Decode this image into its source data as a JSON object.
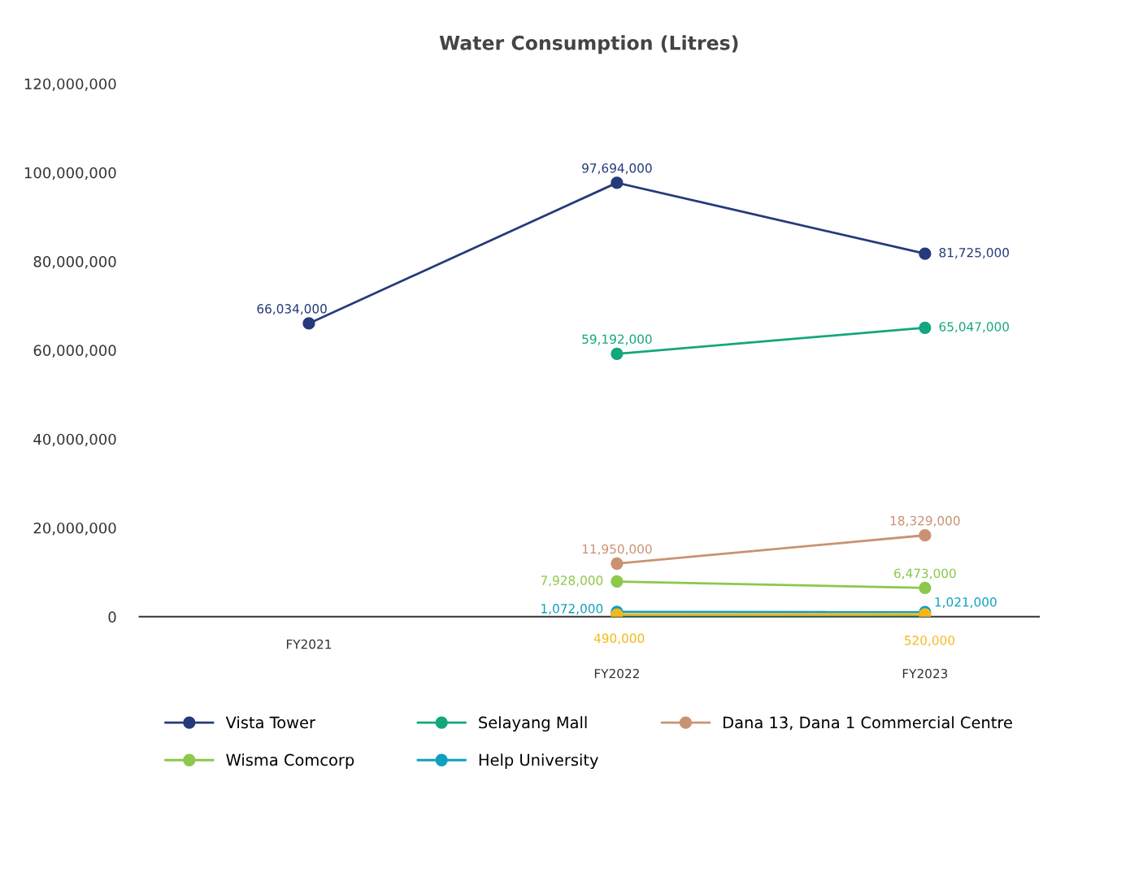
{
  "chart_data": {
    "type": "line",
    "title": "Water Consumption (Litres)",
    "categories": [
      "FY2021",
      "FY2022",
      "FY2023"
    ],
    "series": [
      {
        "name": "Vista Tower",
        "color": "#253a7a",
        "values": [
          66034000,
          97694000,
          81725000
        ],
        "value_labels": [
          "66,034,000",
          "97,694,000",
          "81,725,000"
        ]
      },
      {
        "name": "Selayang Mall",
        "color": "#12a77e",
        "values": [
          null,
          59192000,
          65047000
        ],
        "value_labels": [
          null,
          "59,192,000",
          "65,047,000"
        ]
      },
      {
        "name": "Dana 13, Dana 1 Commercial Centre",
        "color": "#c99273",
        "values": [
          null,
          11950000,
          18329000
        ],
        "value_labels": [
          null,
          "11,950,000",
          "18,329,000"
        ]
      },
      {
        "name": "Wisma Comcorp",
        "color": "#8cc84b",
        "values": [
          null,
          7928000,
          6473000
        ],
        "value_labels": [
          null,
          "7,928,000",
          "6,473,000"
        ]
      },
      {
        "name": "Help University",
        "color": "#0ea0c0",
        "values": [
          null,
          1072000,
          1021000
        ],
        "value_labels": [
          null,
          "1,072,000",
          "1,021,000"
        ]
      },
      {
        "color": "#f7b718",
        "values": [
          null,
          490000,
          520000
        ],
        "value_labels": [
          null,
          "490,000",
          "520,000"
        ]
      },
      {
        "color": "#0b7a5e",
        "values": [
          null,
          0,
          0
        ]
      }
    ],
    "ylim": [
      0,
      120000000
    ],
    "yticks": [
      {
        "value": 0,
        "label": "0"
      },
      {
        "value": 20000000,
        "label": "20,000,000"
      },
      {
        "value": 40000000,
        "label": "40,000,000"
      },
      {
        "value": 60000000,
        "label": "60,000,000"
      },
      {
        "value": 80000000,
        "label": "80,000,000"
      },
      {
        "value": 100000000,
        "label": "100,000,000"
      },
      {
        "value": 120000000,
        "label": "120,000,000"
      }
    ],
    "marker": "circle",
    "line_style": "solid",
    "grid": false,
    "legend": "bottom"
  }
}
